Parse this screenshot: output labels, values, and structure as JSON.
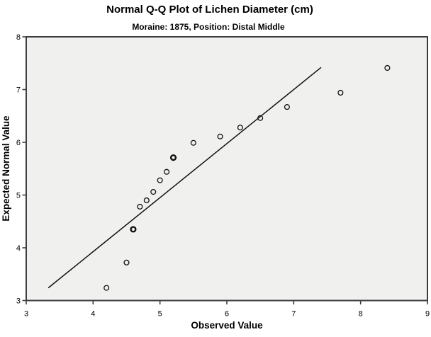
{
  "chart_data": {
    "type": "scatter",
    "title": "Normal Q-Q Plot of Lichen Diameter (cm)",
    "subtitle": "Moraine: 1875, Position: Distal Middle",
    "xlabel": "Observed Value",
    "ylabel": "Expected Normal Value",
    "xlim": [
      3,
      9
    ],
    "ylim": [
      3,
      8
    ],
    "x_ticks": [
      3,
      4,
      5,
      6,
      7,
      8,
      9
    ],
    "y_ticks": [
      3,
      4,
      5,
      6,
      7,
      8
    ],
    "grid": false,
    "legend": "none",
    "marker": "open-circle",
    "points": [
      {
        "observed": 4.2,
        "expected": 3.24
      },
      {
        "observed": 4.5,
        "expected": 3.72
      },
      {
        "observed": 4.6,
        "expected": 4.35,
        "double": true
      },
      {
        "observed": 4.7,
        "expected": 4.78
      },
      {
        "observed": 4.8,
        "expected": 4.9
      },
      {
        "observed": 4.9,
        "expected": 5.06
      },
      {
        "observed": 5.0,
        "expected": 5.28
      },
      {
        "observed": 5.1,
        "expected": 5.44
      },
      {
        "observed": 5.2,
        "expected": 5.71,
        "double": true
      },
      {
        "observed": 5.5,
        "expected": 5.99
      },
      {
        "observed": 5.9,
        "expected": 6.11
      },
      {
        "observed": 6.2,
        "expected": 6.28
      },
      {
        "observed": 6.5,
        "expected": 6.46
      },
      {
        "observed": 6.9,
        "expected": 6.67
      },
      {
        "observed": 7.7,
        "expected": 6.94
      },
      {
        "observed": 8.4,
        "expected": 7.41
      }
    ],
    "reference_line": {
      "x1": 3.33,
      "y1": 3.24,
      "x2": 7.41,
      "y2": 7.42
    },
    "colors": {
      "plot_background": "#f0f0ef",
      "frame": "#3d3d3d",
      "marker": "#111111",
      "reference_line": "#111111",
      "text": "#000000",
      "page_background": "#ffffff"
    }
  }
}
